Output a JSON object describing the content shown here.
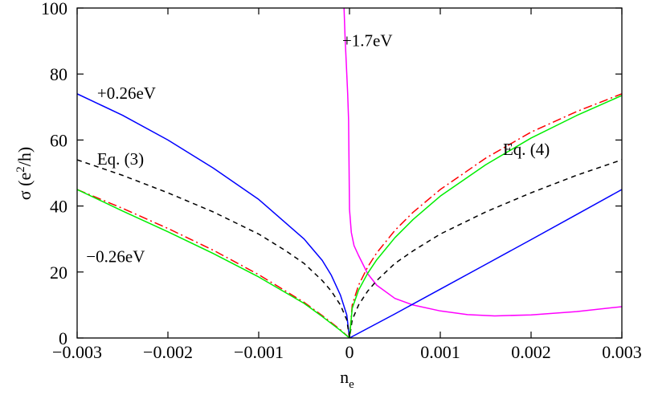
{
  "chart_data": {
    "type": "line",
    "xlabel": "n",
    "xlabel_sub": "e",
    "ylabel_main": "σ (e",
    "ylabel_sup": "2",
    "ylabel_end": "/h)",
    "xlim": [
      -0.003,
      0.003
    ],
    "ylim": [
      0,
      100
    ],
    "grid": false,
    "x_ticks": [
      -0.003,
      -0.002,
      -0.001,
      0,
      0.001,
      0.002,
      0.003
    ],
    "x_tick_labels": [
      "−0.003",
      "−0.002",
      "−0.001",
      "0",
      "0.001",
      "0.002",
      "0.003"
    ],
    "y_ticks": [
      0,
      20,
      40,
      60,
      80,
      100
    ],
    "y_tick_labels": [
      "0",
      "20",
      "40",
      "60",
      "80",
      "100"
    ],
    "series": [
      {
        "color": "#ff00ff",
        "dash": "solid",
        "x": [
          -6e-05,
          -5e-05,
          -4e-05,
          -3e-05,
          -2e-05,
          -1e-05,
          0.0,
          2e-05,
          5e-05,
          0.0001,
          0.0002,
          0.0003,
          0.0005,
          0.0007,
          0.001,
          0.0013,
          0.0016,
          0.002,
          0.0025,
          0.003
        ],
        "y": [
          100,
          92,
          86,
          80,
          74,
          66,
          39,
          32,
          28,
          25,
          19.5,
          16,
          12,
          10,
          8.2,
          7.1,
          6.7,
          7.0,
          8.0,
          9.5
        ]
      },
      {
        "color": "#0000ff",
        "dash": "solid",
        "x": [
          -0.003,
          -0.0025,
          -0.002,
          -0.0015,
          -0.001,
          -0.0005,
          -0.0003,
          -0.0002,
          -0.0001,
          -3e-05,
          0.0,
          0.0005,
          0.001,
          0.0015,
          0.002,
          0.0025,
          0.003
        ],
        "y": [
          74,
          67.5,
          60,
          51.5,
          42,
          30,
          23.5,
          19,
          13,
          7,
          0,
          7.3,
          14.8,
          22.3,
          29.8,
          37.4,
          45
        ]
      },
      {
        "color": "#000000",
        "dash": "dashed",
        "x": [
          -0.003,
          -0.0025,
          -0.002,
          -0.0015,
          -0.001,
          -0.0007,
          -0.0005,
          -0.0003,
          -0.0002,
          -0.0001,
          -3e-05,
          0.0,
          3e-05,
          0.0001,
          0.0002,
          0.0003,
          0.0005,
          0.0007,
          0.001,
          0.0015,
          0.002,
          0.0025,
          0.003
        ],
        "y": [
          54,
          49.3,
          44,
          38.2,
          31.5,
          26.4,
          22.6,
          17.4,
          14.2,
          10,
          5.5,
          0,
          5.5,
          10,
          14.2,
          17.4,
          22.6,
          26.4,
          31.5,
          38.2,
          44,
          49.3,
          54
        ]
      },
      {
        "color": "#ff0000",
        "dash": "dashdot",
        "x": [
          -0.003,
          -0.0025,
          -0.002,
          -0.0015,
          -0.001,
          -0.0005,
          -0.0003,
          -0.0001,
          0.0,
          3e-05,
          0.0001,
          0.0002,
          0.0003,
          0.0005,
          0.0007,
          0.001,
          0.0015,
          0.002,
          0.0025,
          0.003
        ],
        "y": [
          45,
          39.3,
          33.2,
          26.6,
          19.2,
          10.8,
          6.8,
          2.5,
          0,
          10,
          16,
          21.5,
          25.8,
          32.6,
          38.1,
          45,
          54.5,
          62.4,
          68.6,
          74
        ]
      },
      {
        "color": "#00ee00",
        "dash": "solid",
        "x": [
          -0.003,
          -0.0025,
          -0.002,
          -0.0015,
          -0.001,
          -0.0005,
          -0.0003,
          -0.0001,
          0.0,
          3e-05,
          0.0001,
          0.0002,
          0.0003,
          0.0005,
          0.0007,
          0.001,
          0.0015,
          0.002,
          0.0025,
          0.003
        ],
        "y": [
          45,
          38.5,
          32.2,
          25.6,
          18.5,
          10.5,
          6.5,
          2.3,
          0,
          9,
          14.5,
          19.6,
          23.7,
          30.4,
          35.9,
          43,
          52.5,
          60.6,
          67.4,
          73.5
        ]
      }
    ],
    "annotations": [
      {
        "text": "+1.7eV",
        "x": -8e-05,
        "y": 88.5
      },
      {
        "text": "+0.26eV",
        "x": -0.00278,
        "y": 72.5
      },
      {
        "text": "Eq. (3)",
        "x": -0.00278,
        "y": 52.5
      },
      {
        "text": "Eq. (4)",
        "x": 0.00169,
        "y": 55.5
      },
      {
        "text": "−0.26eV",
        "x": -0.0029,
        "y": 23
      }
    ]
  }
}
